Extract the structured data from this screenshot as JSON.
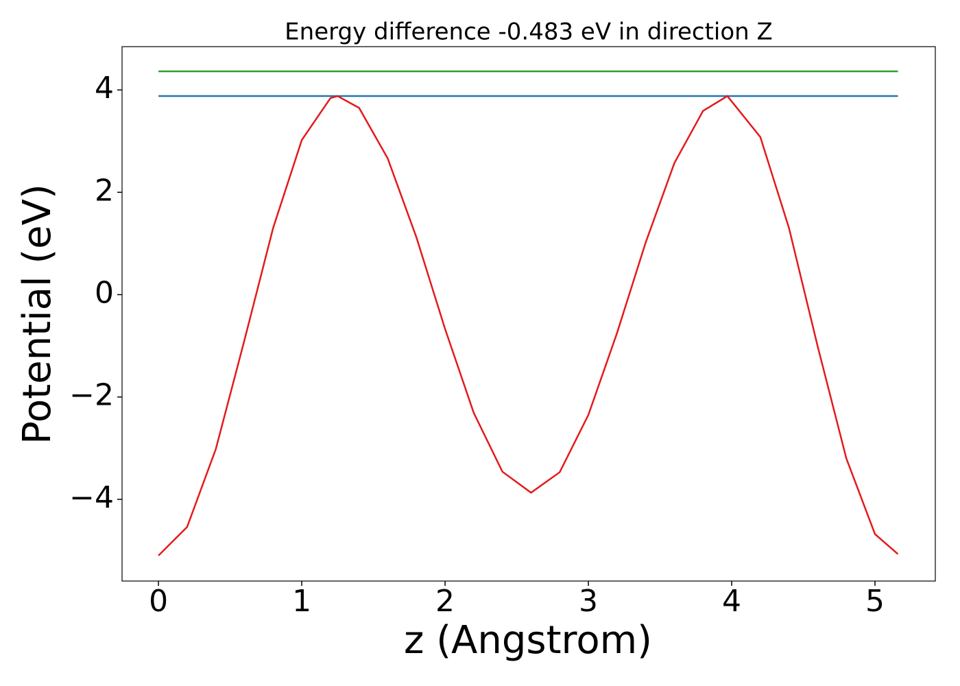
{
  "chart_data": {
    "type": "line",
    "title": "Energy difference -0.483 eV in direction Z",
    "xlabel": "z (Angstrom)",
    "ylabel": "Potential (eV)",
    "series": [
      {
        "color": "#2ca02c",
        "x": [
          0,
          5.16
        ],
        "values": [
          4.363,
          4.363
        ]
      },
      {
        "color": "#1f77b4",
        "x": [
          0,
          5.16
        ],
        "values": [
          3.88,
          3.88
        ]
      },
      {
        "color": "#e31a1c",
        "x": [
          0,
          0.2,
          0.4,
          0.6,
          0.8,
          1.0,
          1.2,
          1.25,
          1.4,
          1.6,
          1.8,
          2.0,
          2.2,
          2.4,
          2.6,
          2.8,
          3.0,
          3.2,
          3.4,
          3.6,
          3.8,
          3.97,
          4.2,
          4.4,
          4.6,
          4.8,
          5.0,
          5.16
        ],
        "values": [
          -5.1,
          -4.54,
          -3.02,
          -0.89,
          1.3,
          3.02,
          3.84,
          3.88,
          3.65,
          2.66,
          1.12,
          -0.67,
          -2.31,
          -3.46,
          -3.87,
          -3.47,
          -2.35,
          -0.75,
          1.02,
          2.57,
          3.59,
          3.88,
          3.08,
          1.3,
          -1.01,
          -3.2,
          -4.68,
          -5.07
        ]
      }
    ],
    "xlim": [
      -0.254,
      5.421
    ],
    "ylim": [
      -5.597,
      4.846
    ],
    "xticks": [
      0,
      1,
      2,
      3,
      4,
      5
    ],
    "yticks": [
      {
        "value": -4,
        "label": "−4"
      },
      {
        "value": -2,
        "label": "−2"
      },
      0,
      2,
      4
    ]
  }
}
